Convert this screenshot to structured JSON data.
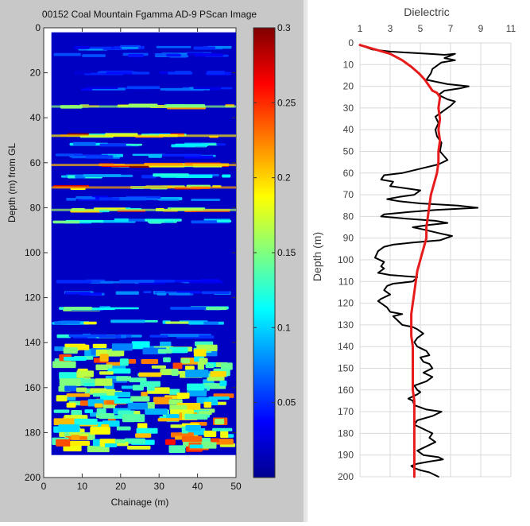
{
  "pscan": {
    "type": "heatmap",
    "title": "00152 Coal Mountain Fgamma AD-9 PScan Image",
    "xlabel": "Chainage (m)",
    "ylabel": "Depth (m) from GL",
    "xlim": [
      0,
      50
    ],
    "ylim": [
      0,
      200
    ],
    "y_reversed": true,
    "xticks": [
      0,
      10,
      20,
      30,
      40,
      50
    ],
    "yticks": [
      0,
      20,
      40,
      60,
      80,
      100,
      120,
      140,
      160,
      180,
      200
    ],
    "data_extent": {
      "x": [
        2,
        50
      ],
      "depth": [
        2,
        190
      ]
    },
    "colormap": "jet",
    "colorbar": {
      "min": 0,
      "max": 0.3,
      "ticks": [
        0.05,
        0.1,
        0.15,
        0.2,
        0.25,
        0.3
      ],
      "tick_labels": [
        "0.05",
        "0.1",
        "0.15",
        "0.2",
        "0.25",
        "0.3"
      ]
    },
    "background_value": 0.02,
    "bands": [
      {
        "depth": 9,
        "value": 0.07
      },
      {
        "depth": 12,
        "value": 0.06
      },
      {
        "depth": 20,
        "value": 0.05
      },
      {
        "depth": 27,
        "value": 0.06
      },
      {
        "depth": 35,
        "value": 0.19
      },
      {
        "depth": 48,
        "value": 0.24
      },
      {
        "depth": 52,
        "value": 0.1
      },
      {
        "depth": 57,
        "value": 0.08
      },
      {
        "depth": 61,
        "value": 0.26
      },
      {
        "depth": 66,
        "value": 0.1
      },
      {
        "depth": 71,
        "value": 0.27
      },
      {
        "depth": 76,
        "value": 0.08
      },
      {
        "depth": 81,
        "value": 0.2
      },
      {
        "depth": 86,
        "value": 0.12
      },
      {
        "depth": 113,
        "value": 0.06
      },
      {
        "depth": 118,
        "value": 0.07
      },
      {
        "depth": 125,
        "value": 0.13
      },
      {
        "depth": 131,
        "value": 0.15
      },
      {
        "depth": 137,
        "value": 0.1
      },
      {
        "depth": 143,
        "value": 0.15
      },
      {
        "depth": 149,
        "value": 0.2
      },
      {
        "depth": 155,
        "value": 0.16
      },
      {
        "depth": 160,
        "value": 0.14
      },
      {
        "depth": 165,
        "value": 0.18
      },
      {
        "depth": 170,
        "value": 0.17
      },
      {
        "depth": 175,
        "value": 0.19
      },
      {
        "depth": 180,
        "value": 0.18
      },
      {
        "depth": 185,
        "value": 0.2
      }
    ]
  },
  "dielectric": {
    "type": "line",
    "title": "Dielectric",
    "xlabel": "",
    "ylabel": "Depth (m)",
    "xlim": [
      1,
      11
    ],
    "ylim": [
      0,
      200
    ],
    "y_reversed": true,
    "x_axis_position": "top",
    "xticks": [
      1,
      3,
      5,
      7,
      9,
      11
    ],
    "yticks": [
      0,
      10,
      20,
      30,
      40,
      50,
      60,
      70,
      80,
      90,
      100,
      110,
      120,
      130,
      140,
      150,
      160,
      170,
      180,
      190,
      200
    ],
    "grid": true,
    "series": [
      {
        "color": "#000000",
        "points": [
          [
            1.0,
            1
          ],
          [
            1.8,
            3
          ],
          [
            3.0,
            4
          ],
          [
            4.2,
            4.5
          ],
          [
            5.6,
            5
          ],
          [
            6.6,
            5.5
          ],
          [
            7.3,
            5
          ],
          [
            6.6,
            7
          ],
          [
            7.3,
            8
          ],
          [
            6.4,
            9
          ],
          [
            5.8,
            12
          ],
          [
            5.7,
            14
          ],
          [
            5.4,
            17
          ],
          [
            6.8,
            19
          ],
          [
            8.2,
            20
          ],
          [
            7.6,
            21
          ],
          [
            6.6,
            22
          ],
          [
            6.2,
            24
          ],
          [
            6.8,
            26
          ],
          [
            7.3,
            27
          ],
          [
            7.0,
            29
          ],
          [
            6.6,
            31
          ],
          [
            6.0,
            34
          ],
          [
            6.2,
            37
          ],
          [
            6.0,
            40
          ],
          [
            6.1,
            43
          ],
          [
            6.4,
            46
          ],
          [
            6.3,
            50
          ],
          [
            6.8,
            54
          ],
          [
            6.2,
            56
          ],
          [
            5.0,
            58
          ],
          [
            3.8,
            60
          ],
          [
            2.6,
            61
          ],
          [
            2.4,
            63
          ],
          [
            3.2,
            64
          ],
          [
            3.0,
            66
          ],
          [
            4.0,
            67
          ],
          [
            5.0,
            68
          ],
          [
            4.6,
            70
          ],
          [
            3.6,
            71
          ],
          [
            2.8,
            72
          ],
          [
            3.6,
            73
          ],
          [
            5.0,
            74
          ],
          [
            7.5,
            75
          ],
          [
            8.8,
            76
          ],
          [
            6.0,
            77
          ],
          [
            4.2,
            78
          ],
          [
            2.6,
            79
          ],
          [
            2.4,
            80
          ],
          [
            4.0,
            81
          ],
          [
            6.0,
            82
          ],
          [
            6.8,
            83
          ],
          [
            5.5,
            84
          ],
          [
            4.5,
            85
          ],
          [
            5.2,
            86
          ],
          [
            6.4,
            88
          ],
          [
            7.1,
            89
          ],
          [
            6.3,
            91
          ],
          [
            4.5,
            92
          ],
          [
            3.2,
            93
          ],
          [
            2.6,
            94
          ],
          [
            2.2,
            96
          ],
          [
            2.0,
            99
          ],
          [
            2.6,
            101
          ],
          [
            2.4,
            103
          ],
          [
            2.6,
            104
          ],
          [
            2.2,
            106
          ],
          [
            3.0,
            107
          ],
          [
            4.8,
            108
          ],
          [
            4.5,
            110
          ],
          [
            3.2,
            111
          ],
          [
            2.8,
            112
          ],
          [
            2.6,
            114
          ],
          [
            3.0,
            116
          ],
          [
            2.4,
            118
          ],
          [
            2.2,
            119
          ],
          [
            2.6,
            121
          ],
          [
            2.8,
            122
          ],
          [
            3.0,
            124
          ],
          [
            3.8,
            125
          ],
          [
            3.2,
            126
          ],
          [
            3.5,
            128
          ],
          [
            3.8,
            130
          ],
          [
            4.5,
            131
          ],
          [
            4.8,
            132
          ],
          [
            5.2,
            134
          ],
          [
            4.8,
            136
          ],
          [
            4.6,
            138
          ],
          [
            4.8,
            140
          ],
          [
            5.4,
            142
          ],
          [
            5.6,
            144
          ],
          [
            5.0,
            145
          ],
          [
            5.2,
            147
          ],
          [
            5.6,
            148
          ],
          [
            5.8,
            150
          ],
          [
            5.2,
            152
          ],
          [
            5.8,
            154
          ],
          [
            5.4,
            156
          ],
          [
            4.6,
            158
          ],
          [
            4.8,
            160
          ],
          [
            5.0,
            161
          ],
          [
            4.8,
            162
          ],
          [
            4.2,
            164
          ],
          [
            4.5,
            165
          ],
          [
            4.6,
            167
          ],
          [
            5.4,
            169
          ],
          [
            6.4,
            170
          ],
          [
            5.8,
            172
          ],
          [
            4.8,
            174
          ],
          [
            4.6,
            176
          ],
          [
            5.2,
            178
          ],
          [
            5.8,
            180
          ],
          [
            5.6,
            182
          ],
          [
            6.0,
            184
          ],
          [
            5.4,
            186
          ],
          [
            4.8,
            188
          ],
          [
            5.2,
            190
          ],
          [
            6.2,
            191
          ],
          [
            6.5,
            192
          ],
          [
            5.6,
            193
          ],
          [
            4.8,
            194
          ],
          [
            4.4,
            195
          ],
          [
            4.6,
            196
          ],
          [
            5.0,
            197
          ],
          [
            5.6,
            198
          ],
          [
            6.2,
            200
          ]
        ]
      },
      {
        "color": "#e61b1b",
        "points": [
          [
            1.0,
            1
          ],
          [
            2.0,
            3
          ],
          [
            3.0,
            5
          ],
          [
            3.8,
            8
          ],
          [
            4.4,
            11
          ],
          [
            4.9,
            14
          ],
          [
            5.3,
            17
          ],
          [
            5.6,
            20
          ],
          [
            5.8,
            22
          ],
          [
            6.1,
            23
          ],
          [
            6.3,
            25
          ],
          [
            6.2,
            30
          ],
          [
            6.3,
            35
          ],
          [
            6.2,
            40
          ],
          [
            6.3,
            45
          ],
          [
            6.2,
            50
          ],
          [
            6.2,
            55
          ],
          [
            6.1,
            60
          ],
          [
            5.9,
            65
          ],
          [
            5.7,
            70
          ],
          [
            5.6,
            75
          ],
          [
            5.5,
            80
          ],
          [
            5.4,
            85
          ],
          [
            5.4,
            90
          ],
          [
            5.2,
            95
          ],
          [
            5.0,
            100
          ],
          [
            4.8,
            105
          ],
          [
            4.7,
            110
          ],
          [
            4.6,
            115
          ],
          [
            4.5,
            120
          ],
          [
            4.4,
            125
          ],
          [
            4.4,
            130
          ],
          [
            4.4,
            135
          ],
          [
            4.5,
            140
          ],
          [
            4.5,
            145
          ],
          [
            4.5,
            150
          ],
          [
            4.5,
            155
          ],
          [
            4.5,
            160
          ],
          [
            4.6,
            165
          ],
          [
            4.6,
            170
          ],
          [
            4.6,
            175
          ],
          [
            4.6,
            180
          ],
          [
            4.6,
            185
          ],
          [
            4.6,
            190
          ],
          [
            4.6,
            195
          ],
          [
            4.6,
            200
          ]
        ]
      }
    ]
  }
}
